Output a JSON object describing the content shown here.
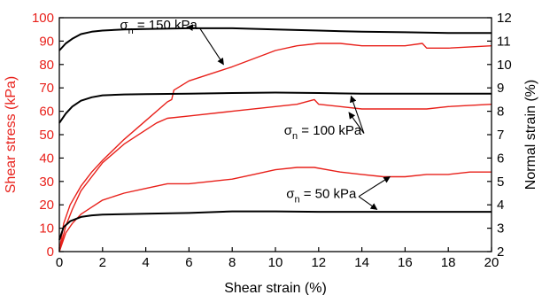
{
  "chart_data": {
    "type": "line",
    "xlabel": "Shear strain (%)",
    "ylabel_left": "Shear stress (kPa)",
    "ylabel_right": "Normal strain (%)",
    "xlim": [
      0,
      20
    ],
    "ylim_left": [
      0,
      100
    ],
    "ylim_right": [
      2,
      12
    ],
    "x_ticks": [
      "0",
      "2",
      "4",
      "6",
      "8",
      "10",
      "12",
      "14",
      "16",
      "18",
      "20"
    ],
    "y_left_ticks": [
      "0",
      "10",
      "20",
      "30",
      "40",
      "50",
      "60",
      "70",
      "80",
      "90",
      "100"
    ],
    "y_right_ticks": [
      "2",
      "3",
      "4",
      "5",
      "6",
      "7",
      "8",
      "9",
      "10",
      "11",
      "12"
    ],
    "grid": false,
    "colors": {
      "shear_stress": "#e8201a",
      "normal_strain": "#000000",
      "left_axis": "#e8201a",
      "right_axis": "#000000"
    },
    "series": [
      {
        "axis": "left",
        "color": "#e8201a",
        "points": [
          [
            0,
            0
          ],
          [
            0.2,
            12
          ],
          [
            0.5,
            20
          ],
          [
            1,
            28
          ],
          [
            1.5,
            34
          ],
          [
            2,
            39
          ],
          [
            3,
            48
          ],
          [
            4,
            56
          ],
          [
            5,
            64
          ],
          [
            5.2,
            65
          ],
          [
            5.3,
            69
          ],
          [
            6,
            73
          ],
          [
            8,
            79
          ],
          [
            10,
            86
          ],
          [
            11,
            88
          ],
          [
            12,
            89
          ],
          [
            13,
            89
          ],
          [
            14,
            88
          ],
          [
            16,
            88
          ],
          [
            16.8,
            89
          ],
          [
            17,
            87
          ],
          [
            18,
            87
          ],
          [
            20,
            88
          ]
        ]
      },
      {
        "axis": "left",
        "color": "#e8201a",
        "points": [
          [
            0,
            0
          ],
          [
            0.3,
            11
          ],
          [
            0.6,
            18
          ],
          [
            1,
            26
          ],
          [
            1.5,
            32
          ],
          [
            2,
            38
          ],
          [
            3,
            46
          ],
          [
            4,
            52
          ],
          [
            4.5,
            55
          ],
          [
            5,
            57
          ],
          [
            6,
            58
          ],
          [
            8,
            60
          ],
          [
            10,
            62
          ],
          [
            11,
            63
          ],
          [
            11.8,
            65
          ],
          [
            12,
            63
          ],
          [
            13,
            62
          ],
          [
            14,
            61
          ],
          [
            15,
            61
          ],
          [
            16,
            61
          ],
          [
            17,
            61
          ],
          [
            18,
            62
          ],
          [
            20,
            63
          ]
        ]
      },
      {
        "axis": "left",
        "color": "#e8201a",
        "points": [
          [
            0,
            0
          ],
          [
            0.3,
            8
          ],
          [
            0.6,
            12
          ],
          [
            1,
            16
          ],
          [
            1.5,
            19
          ],
          [
            2,
            22
          ],
          [
            3,
            25
          ],
          [
            4,
            27
          ],
          [
            5,
            29
          ],
          [
            6,
            29
          ],
          [
            7,
            30
          ],
          [
            8,
            31
          ],
          [
            9,
            33
          ],
          [
            10,
            35
          ],
          [
            11,
            36
          ],
          [
            11.8,
            36
          ],
          [
            13,
            34
          ],
          [
            14,
            33
          ],
          [
            15,
            32
          ],
          [
            15.5,
            32
          ],
          [
            16,
            32
          ],
          [
            17,
            33
          ],
          [
            18,
            33
          ],
          [
            19,
            34
          ],
          [
            20,
            34
          ]
        ]
      },
      {
        "axis": "right",
        "color": "#000000",
        "points": [
          [
            0,
            10.6
          ],
          [
            0.3,
            10.9
          ],
          [
            0.6,
            11.1
          ],
          [
            1,
            11.3
          ],
          [
            1.5,
            11.4
          ],
          [
            2,
            11.45
          ],
          [
            3,
            11.5
          ],
          [
            4,
            11.52
          ],
          [
            6,
            11.55
          ],
          [
            8,
            11.55
          ],
          [
            10,
            11.5
          ],
          [
            12,
            11.45
          ],
          [
            14,
            11.4
          ],
          [
            16,
            11.38
          ],
          [
            18,
            11.35
          ],
          [
            20,
            11.35
          ]
        ]
      },
      {
        "axis": "right",
        "color": "#000000",
        "points": [
          [
            0,
            7.5
          ],
          [
            0.3,
            7.9
          ],
          [
            0.6,
            8.2
          ],
          [
            1,
            8.45
          ],
          [
            1.5,
            8.6
          ],
          [
            2,
            8.68
          ],
          [
            3,
            8.72
          ],
          [
            4,
            8.73
          ],
          [
            6,
            8.75
          ],
          [
            8,
            8.78
          ],
          [
            10,
            8.8
          ],
          [
            12,
            8.78
          ],
          [
            14,
            8.75
          ],
          [
            16,
            8.75
          ],
          [
            18,
            8.75
          ],
          [
            20,
            8.75
          ]
        ]
      },
      {
        "axis": "right",
        "color": "#000000",
        "points": [
          [
            0,
            2.5
          ],
          [
            0.2,
            3.05
          ],
          [
            0.5,
            3.3
          ],
          [
            1,
            3.48
          ],
          [
            1.5,
            3.55
          ],
          [
            2,
            3.58
          ],
          [
            4,
            3.62
          ],
          [
            6,
            3.65
          ],
          [
            8,
            3.72
          ],
          [
            10,
            3.72
          ],
          [
            12,
            3.7
          ],
          [
            14,
            3.7
          ],
          [
            16,
            3.7
          ],
          [
            18,
            3.7
          ],
          [
            20,
            3.7
          ]
        ]
      }
    ],
    "annotations": [
      {
        "sigma": "σ",
        "sub": "n",
        "rest": " = 150 kPa",
        "at": [
          2.8,
          95
        ],
        "arrows_to": [
          [
            5.9,
            96
          ],
          [
            7.6,
            80
          ]
        ]
      },
      {
        "sigma": "σ",
        "sub": "n",
        "rest": " = 100 kPa",
        "at": [
          10.4,
          50
        ],
        "arrows_to": [
          [
            13.4,
            59.5
          ],
          [
            13.5,
            66.5
          ]
        ]
      },
      {
        "sigma": "σ",
        "sub": "n",
        "rest": " = 50 kPa",
        "at": [
          10.5,
          23
        ],
        "arrows_to": [
          [
            15.3,
            32
          ],
          [
            14.7,
            18
          ]
        ]
      }
    ]
  }
}
